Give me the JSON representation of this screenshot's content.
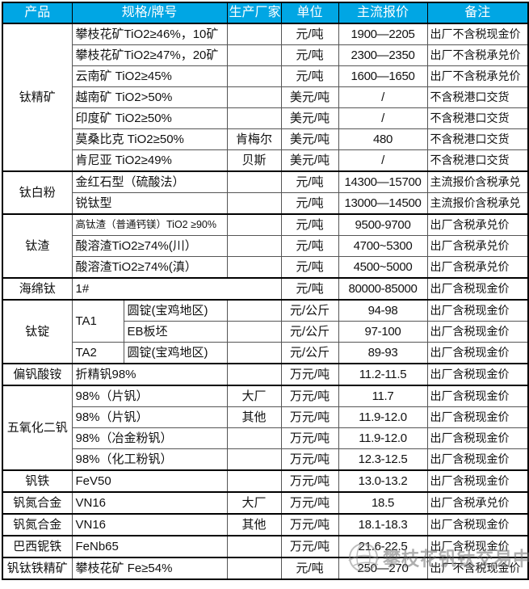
{
  "colors": {
    "header_bg": "#00A6E4",
    "header_text": "#FFFFFF",
    "border_dark": "#000000",
    "border_light": "#555555",
    "watermark_gray": "#6E6E6E"
  },
  "columns": [
    "产品",
    "规格/牌号",
    "生产厂家",
    "单位",
    "主流报价",
    "备注"
  ],
  "sections": [
    {
      "product": "钛精矿",
      "rows": [
        {
          "spec": "攀枝花矿TiO2≥46%，10矿",
          "mfr": "",
          "unit": "元/吨",
          "price": "1900—2205",
          "note": "出厂不含税现金价"
        },
        {
          "spec": "攀枝花矿TiO2≥47%，20矿",
          "mfr": "",
          "unit": "元/吨",
          "price": "2300—2350",
          "note": "出厂不含税承兑价"
        },
        {
          "spec": "云南矿 TiO2≥45%",
          "mfr": "",
          "unit": "元/吨",
          "price": "1600—1650",
          "note": "出厂不含税承兑价"
        },
        {
          "spec": "越南矿 TiO2>50%",
          "mfr": "",
          "unit": "美元/吨",
          "price": "/",
          "note": "不含税港口交货"
        },
        {
          "spec": "印度矿 TiO2≥50%",
          "mfr": "",
          "unit": "美元/吨",
          "price": "/",
          "note": "不含税港口交货"
        },
        {
          "spec": "莫桑比克 TiO2≥50%",
          "mfr": "肯梅尔",
          "unit": "美元/吨",
          "price": "480",
          "note": "不含税港口交货"
        },
        {
          "spec": "肯尼亚 TiO2≥49%",
          "mfr": "贝斯",
          "unit": "美元/吨",
          "price": "/",
          "note": "不含税港口交货"
        }
      ]
    },
    {
      "product": "钛白粉",
      "rows": [
        {
          "spec": "金红石型（硫酸法）",
          "mfr": "",
          "unit": "元/吨",
          "price": "14300—15700",
          "note": "主流报价含税承兑"
        },
        {
          "spec": "锐钛型",
          "mfr": "",
          "unit": "元/吨",
          "price": "13000—14500",
          "note": "主流报价含税承兑"
        }
      ]
    },
    {
      "product": "钛渣",
      "rows": [
        {
          "spec": "高钛渣（普通钙镁）TiO2 ≥90%",
          "mfr": "",
          "unit": "元/吨",
          "price": "9500-9700",
          "note": "出厂含税承兑价"
        },
        {
          "spec": "酸溶渣TiO2≥74%(川）",
          "mfr": "",
          "unit": "元/吨",
          "price": "4700~5300",
          "note": "出厂含税承兑价"
        },
        {
          "spec": "酸溶渣TiO2≥74%(滇）",
          "mfr": "",
          "unit": "元/吨",
          "price": "4500~5000",
          "note": "出厂含税承兑价"
        }
      ]
    },
    {
      "product": "海绵钛",
      "rows": [
        {
          "spec": "1#",
          "wide": true,
          "unit": "元/吨",
          "price": "80000-85000",
          "note": "出厂含税现金价"
        }
      ]
    },
    {
      "product": "钛锭",
      "rows": [
        {
          "grade": "TA1",
          "graderows": 2,
          "type": "圆锭(宝鸡地区)",
          "unit": "元/公斤",
          "price": "94-98",
          "note": "出厂含税现金价"
        },
        {
          "type": "EB板坯",
          "unit": "元/公斤",
          "price": "97-100",
          "note": "出厂含税现金价"
        },
        {
          "grade": "TA2",
          "graderows": 1,
          "type": "圆锭(宝鸡地区)",
          "unit": "元/公斤",
          "price": "89-93",
          "note": "出厂含税现金价"
        }
      ]
    },
    {
      "product": "偏钒酸铵",
      "rows": [
        {
          "spec": "折精钒98%",
          "mfr": "",
          "unit": "万元/吨",
          "price": "11.2-11.5",
          "note": "出厂含税现金价"
        }
      ]
    },
    {
      "product": "五氧化二钒",
      "rows": [
        {
          "spec": "98%（片钒）",
          "mfr": "大厂",
          "unit": "万元/吨",
          "price": "11.7",
          "note": "出厂含税现金价"
        },
        {
          "spec": "98%（片钒）",
          "mfr": "其他",
          "unit": "万元/吨",
          "price": "11.9-12.0",
          "note": "出厂含税现金价"
        },
        {
          "spec": "98%（冶金粉钒）",
          "mfr": "",
          "unit": "万元/吨",
          "price": "11.9-12.0",
          "note": "出厂含税现金价"
        },
        {
          "spec": "98%（化工粉钒）",
          "mfr": "",
          "unit": "万元/吨",
          "price": "12.3-12.5",
          "note": "出厂含税现金价"
        }
      ]
    },
    {
      "product": "钒铁",
      "rows": [
        {
          "spec": "FeV50",
          "mfr": "",
          "unit": "万元/吨",
          "price": "13.0-13.2",
          "note": "出厂含税现金价"
        }
      ]
    },
    {
      "product": "钒氮合金",
      "rows": [
        {
          "spec": "VN16",
          "mfr": "大厂",
          "unit": "万元/吨",
          "price": "18.5",
          "note": "出厂含税承兑价"
        }
      ]
    },
    {
      "product": "钒氮合金",
      "rows": [
        {
          "spec": "VN16",
          "mfr": "其他",
          "unit": "万元/吨",
          "price": "18.1-18.3",
          "note": "出厂含税现金价"
        }
      ]
    },
    {
      "product": "巴西铌铁",
      "rows": [
        {
          "spec": "FeNb65",
          "mfr": "",
          "unit": "万元/吨",
          "price": "21.6-22.5",
          "note": "出厂含税现金价"
        }
      ]
    },
    {
      "product": "钒钛铁精矿",
      "rows": [
        {
          "spec": "攀枝花矿 Fe≥54%",
          "mfr": "",
          "unit": "元/吨",
          "price": "250—270",
          "note": "出厂不含税现金价"
        }
      ]
    }
  ],
  "watermark": {
    "text": "攀枝花钒钛交易中心",
    "logo": "globe-icon"
  }
}
